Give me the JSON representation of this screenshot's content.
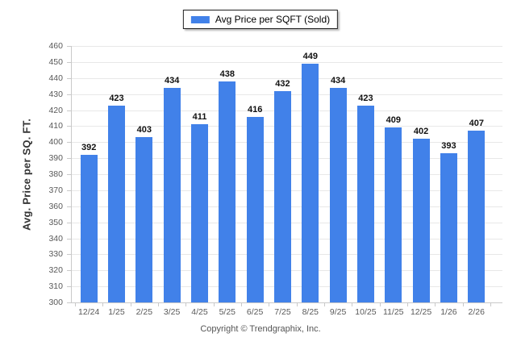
{
  "legend": {
    "label": "Avg Price per SQFT (Sold)"
  },
  "footer": {
    "copyright": "Copyright © Trendgraphix, Inc."
  },
  "chart_data": {
    "type": "bar",
    "title": "",
    "xlabel": "",
    "ylabel": "Avg. Price per SQ. FT.",
    "categories": [
      "12/24",
      "1/25",
      "2/25",
      "3/25",
      "4/25",
      "5/25",
      "6/25",
      "7/25",
      "8/25",
      "9/25",
      "10/25",
      "11/25",
      "12/25",
      "1/26",
      "2/26"
    ],
    "series": [
      {
        "name": "Avg Price per SQFT (Sold)",
        "values": [
          392,
          423,
          403,
          434,
          411,
          438,
          416,
          432,
          449,
          434,
          423,
          409,
          402,
          393,
          407
        ]
      }
    ],
    "ylim": [
      300,
      460
    ],
    "ytick_step": 10,
    "grid": true,
    "legend_position": "top-center"
  },
  "colors": {
    "bar": "#4181E9",
    "grid": "#E8E8E8",
    "axis": "#C9C9C9",
    "tick_text": "#595959",
    "value_label": "#111111",
    "y_title": "#333333",
    "footer_text": "#555555",
    "legend_border": "#1F1F1F"
  }
}
